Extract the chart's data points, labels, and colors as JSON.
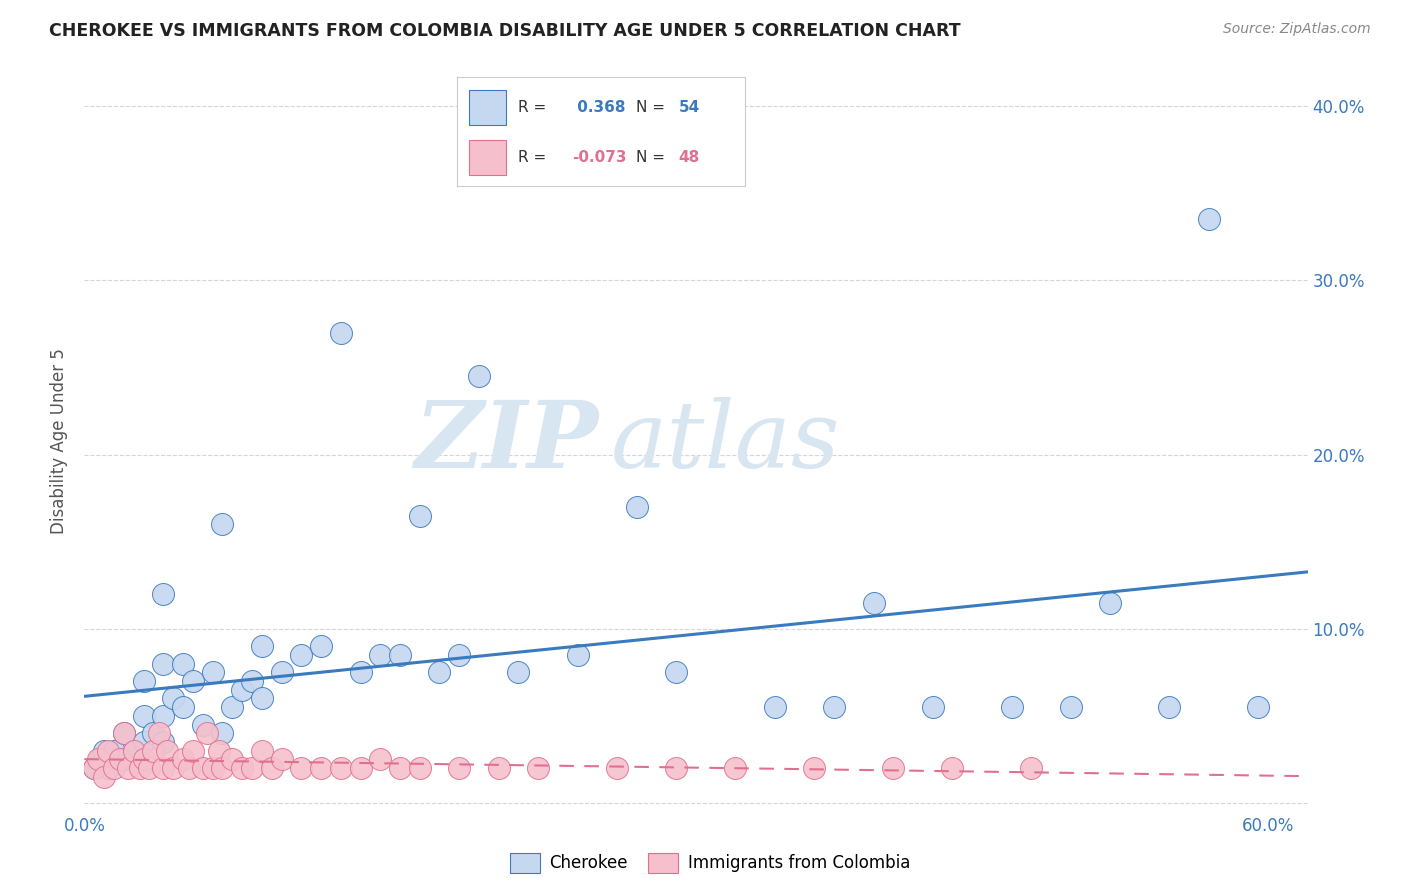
{
  "title": "CHEROKEE VS IMMIGRANTS FROM COLOMBIA DISABILITY AGE UNDER 5 CORRELATION CHART",
  "source": "Source: ZipAtlas.com",
  "ylabel": "Disability Age Under 5",
  "xlim": [
    0.0,
    0.62
  ],
  "ylim": [
    -0.005,
    0.42
  ],
  "xticks": [
    0.0,
    0.1,
    0.2,
    0.3,
    0.4,
    0.5,
    0.6
  ],
  "yticks": [
    0.0,
    0.1,
    0.2,
    0.3,
    0.4
  ],
  "ytick_labels": [
    "",
    "10.0%",
    "20.0%",
    "30.0%",
    "40.0%"
  ],
  "xtick_labels": [
    "0.0%",
    "",
    "",
    "",
    "",
    "",
    "60.0%"
  ],
  "background_color": "#ffffff",
  "plot_bg_color": "#ffffff",
  "grid_color": "#cccccc",
  "cherokee_color": "#c5d8f0",
  "colombia_color": "#f5c0cc",
  "cherokee_R": 0.368,
  "cherokee_N": 54,
  "colombia_R": -0.073,
  "colombia_N": 48,
  "cherokee_line_color": "#3a7abf",
  "colombia_line_color": "#e07090",
  "watermark_zip": "ZIP",
  "watermark_atlas": "atlas",
  "cherokee_x": [
    0.005,
    0.008,
    0.01,
    0.012,
    0.015,
    0.02,
    0.02,
    0.025,
    0.03,
    0.03,
    0.03,
    0.035,
    0.04,
    0.04,
    0.04,
    0.04,
    0.045,
    0.05,
    0.05,
    0.055,
    0.06,
    0.065,
    0.07,
    0.07,
    0.075,
    0.08,
    0.085,
    0.09,
    0.09,
    0.1,
    0.11,
    0.12,
    0.13,
    0.14,
    0.15,
    0.16,
    0.17,
    0.18,
    0.19,
    0.2,
    0.22,
    0.25,
    0.28,
    0.3,
    0.35,
    0.38,
    0.4,
    0.43,
    0.47,
    0.5,
    0.52,
    0.55,
    0.57,
    0.595
  ],
  "cherokee_y": [
    0.02,
    0.025,
    0.03,
    0.02,
    0.03,
    0.025,
    0.04,
    0.03,
    0.035,
    0.05,
    0.07,
    0.04,
    0.035,
    0.05,
    0.08,
    0.12,
    0.06,
    0.055,
    0.08,
    0.07,
    0.045,
    0.075,
    0.04,
    0.16,
    0.055,
    0.065,
    0.07,
    0.06,
    0.09,
    0.075,
    0.085,
    0.09,
    0.27,
    0.075,
    0.085,
    0.085,
    0.165,
    0.075,
    0.085,
    0.245,
    0.075,
    0.085,
    0.17,
    0.075,
    0.055,
    0.055,
    0.115,
    0.055,
    0.055,
    0.055,
    0.115,
    0.055,
    0.335,
    0.055
  ],
  "colombia_x": [
    0.005,
    0.007,
    0.01,
    0.012,
    0.015,
    0.018,
    0.02,
    0.022,
    0.025,
    0.028,
    0.03,
    0.033,
    0.035,
    0.038,
    0.04,
    0.042,
    0.045,
    0.05,
    0.053,
    0.055,
    0.06,
    0.062,
    0.065,
    0.068,
    0.07,
    0.075,
    0.08,
    0.085,
    0.09,
    0.095,
    0.1,
    0.11,
    0.12,
    0.13,
    0.14,
    0.15,
    0.16,
    0.17,
    0.19,
    0.21,
    0.23,
    0.27,
    0.3,
    0.33,
    0.37,
    0.41,
    0.44,
    0.48
  ],
  "colombia_y": [
    0.02,
    0.025,
    0.015,
    0.03,
    0.02,
    0.025,
    0.04,
    0.02,
    0.03,
    0.02,
    0.025,
    0.02,
    0.03,
    0.04,
    0.02,
    0.03,
    0.02,
    0.025,
    0.02,
    0.03,
    0.02,
    0.04,
    0.02,
    0.03,
    0.02,
    0.025,
    0.02,
    0.02,
    0.03,
    0.02,
    0.025,
    0.02,
    0.02,
    0.02,
    0.02,
    0.025,
    0.02,
    0.02,
    0.02,
    0.02,
    0.02,
    0.02,
    0.02,
    0.02,
    0.02,
    0.02,
    0.02,
    0.02
  ]
}
